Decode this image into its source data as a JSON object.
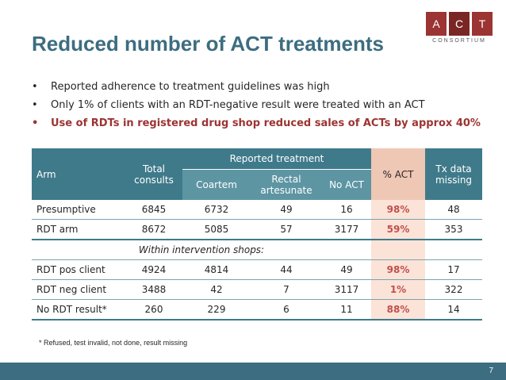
{
  "slide": {
    "title": "Reduced number of ACT treatments",
    "page_number": "7",
    "colors": {
      "title": "#3d6d80",
      "accent": "#9b3432",
      "table_header": "#3f7a8a",
      "pct_highlight": "#fbe3d8"
    }
  },
  "logo": {
    "letters": [
      "A",
      "C",
      "T"
    ],
    "subtitle": "CONSORTIUM"
  },
  "bullets": [
    "Reported adherence to treatment guidelines was high",
    "Only 1% of clients with an RDT-negative result were treated with an ACT",
    "Use of RDTs in registered drug shop reduced sales of ACTs by approx 40%"
  ],
  "table": {
    "headers": {
      "arm": "Arm",
      "total": "Total consults",
      "reported": "Reported treatment",
      "coartem": "Coartem",
      "rectal": "Rectal artesunate",
      "noact": "No ACT",
      "pct": "% ACT",
      "missing": "Tx data missing"
    },
    "rows": [
      {
        "arm": "Presumptive",
        "total": "6845",
        "coartem": "6732",
        "rectal": "49",
        "noact": "16",
        "pct": "98%",
        "missing": "48"
      },
      {
        "arm": "RDT arm",
        "total": "8672",
        "coartem": "5085",
        "rectal": "57",
        "noact": "3177",
        "pct": "59%",
        "missing": "353"
      }
    ],
    "subheading": "Within intervention shops:",
    "subrows": [
      {
        "arm": "RDT pos client",
        "total": "4924",
        "coartem": "4814",
        "rectal": "44",
        "noact": "49",
        "pct": "98%",
        "missing": "17"
      },
      {
        "arm": "RDT neg client",
        "total": "3488",
        "coartem": "42",
        "rectal": "7",
        "noact": "3117",
        "pct": "1%",
        "missing": "322"
      },
      {
        "arm": "No RDT result*",
        "total": "260",
        "coartem": "229",
        "rectal": "6",
        "noact": "11",
        "pct": "88%",
        "missing": "14"
      }
    ]
  },
  "footnote": "* Refused, test invalid, not done, result missing"
}
